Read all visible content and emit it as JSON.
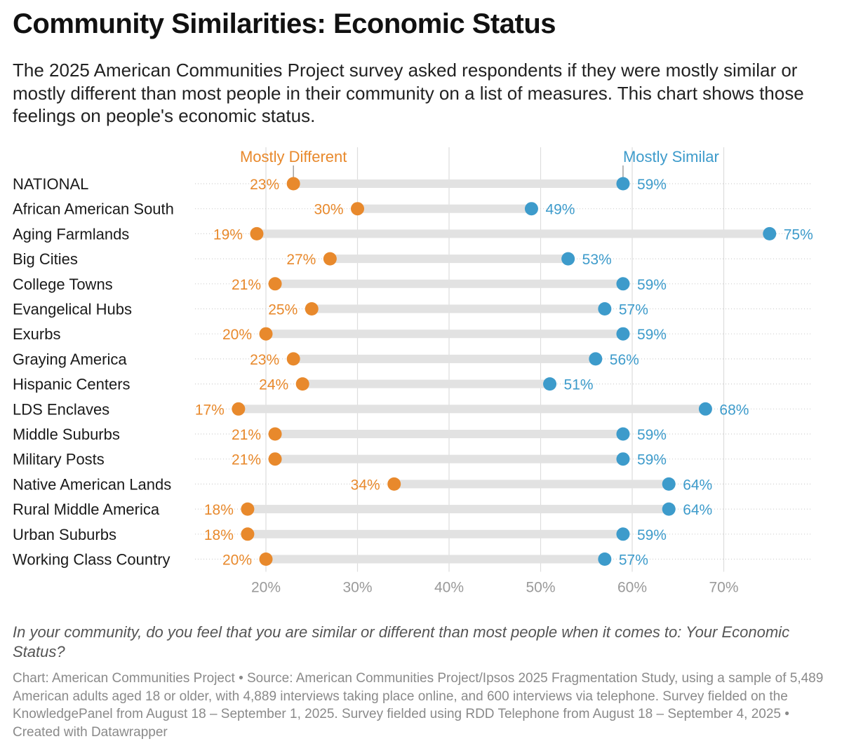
{
  "title": "Community Similarities: Economic Status",
  "subtitle": "The 2025 American Communities Project survey asked respondents if they were mostly similar or mostly different than most people in their community on a list of measures. This chart shows those feelings on people's economic status.",
  "question": "In your community, do you feel that you are similar or different than most people when it comes to: Your Economic Status?",
  "notes": {
    "chart_credit": "Chart: American Communities Project",
    "source": "Source: American Communities Project/Ipsos 2025 Fragmentation Study, using a sample of 5,489 American adults aged 18 or older, with 4,889 interviews taking place online, and 600 interviews via telephone. Survey fielded on the KnowledgePanel from August 18 – September 1, 2025. Survey fielded using RDD Telephone from August 18 – September 4, 2025",
    "created_with": "Created with Datawrapper",
    "separator": "•"
  },
  "colors": {
    "different": "#E8892C",
    "similar": "#3D9BCB",
    "range_bar": "#E2E2E2",
    "grid": "#DDDDDD",
    "tick_label": "#9A9A9A"
  },
  "chart_data": {
    "type": "dot-range",
    "x_unit": "%",
    "xlim": [
      17,
      75
    ],
    "x_ticks": [
      20,
      30,
      40,
      50,
      60,
      70
    ],
    "x_tick_labels": [
      "20%",
      "30%",
      "40%",
      "50%",
      "60%",
      "70%"
    ],
    "grid": true,
    "legend_placement": "top, labels above first row",
    "series": [
      {
        "name": "Mostly Different",
        "color": "#E8892C"
      },
      {
        "name": "Mostly Similar",
        "color": "#3D9BCB"
      }
    ],
    "categories": [
      "NATIONAL",
      "African American South",
      "Aging Farmlands",
      "Big Cities",
      "College Towns",
      "Evangelical Hubs",
      "Exurbs",
      "Graying America",
      "Hispanic Centers",
      "LDS Enclaves",
      "Middle Suburbs",
      "Military Posts",
      "Native American Lands",
      "Rural Middle America",
      "Urban Suburbs",
      "Working Class Country"
    ],
    "different": [
      23,
      30,
      19,
      27,
      21,
      25,
      20,
      23,
      24,
      17,
      21,
      21,
      34,
      18,
      18,
      20
    ],
    "similar": [
      59,
      49,
      75,
      53,
      59,
      57,
      59,
      56,
      51,
      68,
      59,
      59,
      64,
      64,
      59,
      57
    ]
  }
}
